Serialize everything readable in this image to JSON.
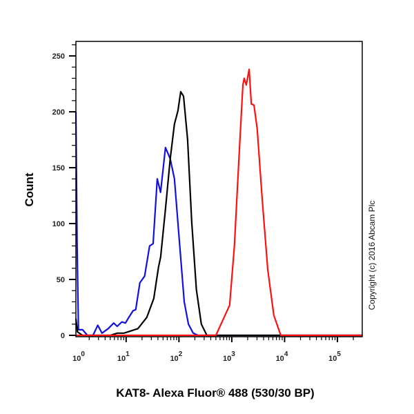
{
  "chart_data": {
    "type": "line",
    "title": "",
    "xlabel": "KAT8- Alexa Fluor® 488 (530/30 BP)",
    "ylabel": "Count",
    "xscale": "log",
    "xlim": [
      1.12,
      295000
    ],
    "ylim": [
      0,
      263
    ],
    "grid": false,
    "x_ticks": [
      {
        "base": "10",
        "exp": "0",
        "value": 1
      },
      {
        "base": "10",
        "exp": "1",
        "value": 10
      },
      {
        "base": "10",
        "exp": "2",
        "value": 100
      },
      {
        "base": "10",
        "exp": "3",
        "value": 1000
      },
      {
        "base": "10",
        "exp": "4",
        "value": 10000
      },
      {
        "base": "10",
        "exp": "5",
        "value": 100000
      }
    ],
    "y_ticks": [
      "0",
      "50",
      "100",
      "150",
      "200",
      "250"
    ],
    "annotation": "Copyright (c) 2016 Abcam Plc",
    "series": [
      {
        "color": "#1010e0",
        "points": [
          [
            1.12,
            200
          ],
          [
            1.18,
            84
          ],
          [
            1.25,
            5
          ],
          [
            1.5,
            5
          ],
          [
            1.85,
            0
          ],
          [
            2.36,
            0
          ],
          [
            2.91,
            9
          ],
          [
            3.49,
            2
          ],
          [
            4.57,
            6
          ],
          [
            5.82,
            11
          ],
          [
            6.76,
            8
          ],
          [
            8.3,
            12
          ],
          [
            9.7,
            11
          ],
          [
            11.2,
            16
          ],
          [
            13.5,
            22
          ],
          [
            15.2,
            23
          ],
          [
            18.2,
            47
          ],
          [
            22.4,
            53
          ],
          [
            27.8,
            80
          ],
          [
            32.4,
            82
          ],
          [
            38.8,
            140
          ],
          [
            44.9,
            128
          ],
          [
            55.6,
            168
          ],
          [
            68.4,
            158
          ],
          [
            82,
            140
          ],
          [
            102,
            84
          ],
          [
            126,
            30
          ],
          [
            151,
            10
          ],
          [
            186,
            2
          ],
          [
            229,
            0
          ],
          [
            295000,
            0
          ]
        ]
      },
      {
        "color": "#000000",
        "points": [
          [
            1.12,
            15
          ],
          [
            1.2,
            3
          ],
          [
            1.5,
            0
          ],
          [
            5,
            0
          ],
          [
            6.8,
            2
          ],
          [
            9.1,
            2
          ],
          [
            16.7,
            6
          ],
          [
            24.6,
            16
          ],
          [
            33.4,
            33
          ],
          [
            41,
            61
          ],
          [
            45,
            70
          ],
          [
            55.6,
            113
          ],
          [
            68.4,
            158
          ],
          [
            82,
            189
          ],
          [
            95.6,
            201
          ],
          [
            108,
            218
          ],
          [
            122,
            214
          ],
          [
            146,
            175
          ],
          [
            174,
            102
          ],
          [
            214,
            41
          ],
          [
            265,
            10
          ],
          [
            338,
            0
          ],
          [
            295000,
            0
          ]
        ]
      },
      {
        "color": "#ff1010",
        "points": [
          [
            1.12,
            0
          ],
          [
            500,
            0
          ],
          [
            912,
            27
          ],
          [
            1120,
            80
          ],
          [
            1380,
            162
          ],
          [
            1620,
            224
          ],
          [
            1720,
            230
          ],
          [
            1880,
            224
          ],
          [
            2130,
            238
          ],
          [
            2340,
            207
          ],
          [
            2630,
            206
          ],
          [
            3020,
            185
          ],
          [
            3780,
            121
          ],
          [
            4790,
            59
          ],
          [
            6250,
            18
          ],
          [
            8470,
            0
          ],
          [
            295000,
            0
          ]
        ]
      }
    ]
  }
}
